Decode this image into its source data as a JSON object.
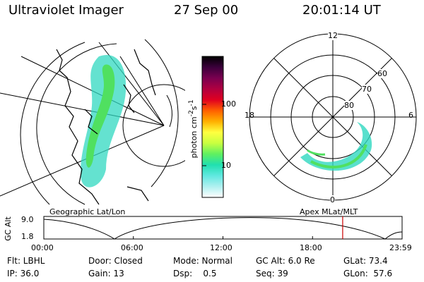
{
  "header": {
    "instrument": "Ultraviolet Imager",
    "date": "27 Sep 00",
    "time": "20:01:14 UT"
  },
  "colorbar": {
    "unit": "photon cm",
    "unit_exp1": "-2",
    "unit_mid": "s",
    "unit_exp2": "-1",
    "ticks": [
      "100",
      "10"
    ],
    "colors": [
      "#000000",
      "#3b003b",
      "#7a0050",
      "#b00040",
      "#e00020",
      "#ff6000",
      "#ffb000",
      "#ffff40",
      "#c8ff40",
      "#60f060",
      "#20e0b0",
      "#60e8e0",
      "#b0f0f0",
      "#ffffff"
    ]
  },
  "map_panel": {
    "label": "Geographic Lat/Lon"
  },
  "polar_panel": {
    "label": "Apex MLat/MLT",
    "mlt_labels": {
      "top": "12",
      "left": "18",
      "right": "6",
      "bottom": "0"
    },
    "lat_labels": [
      "60",
      "70",
      "80"
    ]
  },
  "altitude_plot": {
    "ylabel": "GC Alt",
    "yticks": [
      "9.0",
      "1.8"
    ],
    "xticks": [
      "00:00",
      "06:00",
      "12:00",
      "18:00",
      "23:59"
    ],
    "current_time_marker_hours": 20.02,
    "marker_color": "#cc0000"
  },
  "info": {
    "row1": [
      {
        "text": "Flt: LBHL"
      },
      {
        "text": "Door: Closed"
      },
      {
        "text": "Mode: Normal"
      },
      {
        "text": "GC Alt: 6.0 Re"
      },
      {
        "text": "GLat: 73.4"
      }
    ],
    "row2": [
      {
        "text": "IP: 36.0"
      },
      {
        "text": "Gain: 13"
      },
      {
        "text": "Dsp:    0.5"
      },
      {
        "text": "Seq: 39"
      },
      {
        "text": "GLon:  57.6"
      }
    ]
  }
}
